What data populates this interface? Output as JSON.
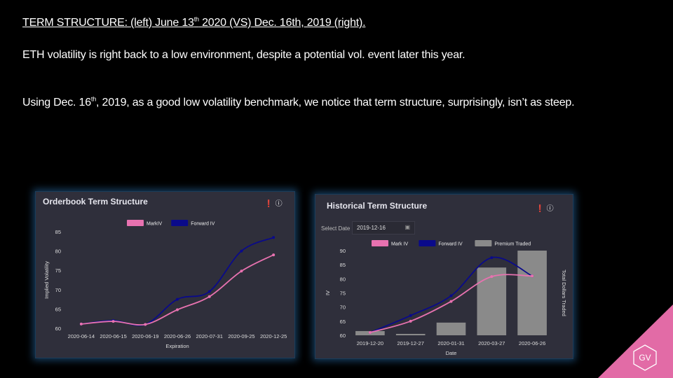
{
  "slide": {
    "title_a": "TERM STRUCTURE: (left) June 13",
    "title_sup": "th",
    "title_b": " 2020 (VS) Dec. 16th, 2019 (right).",
    "line1": "ETH volatility is right back to a low environment, despite a potential vol. event later this year.",
    "line2_a": "Using Dec. 16",
    "line2_sup": "th",
    "line2_b": ", 2019, as a good low volatility benchmark, we notice that term structure, surprisingly,  isn’t as steep.",
    "logo_text": "GV"
  },
  "colors": {
    "mark_iv": "#e872b0",
    "forward_iv": "#0a0a8a",
    "premium_traded": "#8a8a8a",
    "corner": "#e26ba6",
    "panel_bg": "#2f2f3b"
  },
  "chart_data": [
    {
      "type": "line",
      "title": "Orderbook Term Structure",
      "icons": [
        "info-icon",
        "help-icon"
      ],
      "categories": [
        "2020-06-14",
        "2020-06-15",
        "2020-06-19",
        "2020-06-26",
        "2020-07-31",
        "2020-09-25",
        "2020-12-25"
      ],
      "series": [
        {
          "name": "MarkIV",
          "values": [
            61.1,
            61.8,
            61.0,
            64.8,
            68.2,
            74.8,
            79.0
          ]
        },
        {
          "name": "Forward IV",
          "values": [
            61.1,
            62.0,
            61.0,
            67.5,
            69.5,
            80.0,
            83.5
          ]
        }
      ],
      "xlabel": "Expiration",
      "ylabel": "Implied Volatility",
      "ylim": [
        60,
        85
      ],
      "yticks": [
        60,
        65,
        70,
        75,
        80,
        85
      ],
      "legend": "top-center",
      "grid": false
    },
    {
      "type": "bar+line",
      "title": "Historical Term Structure",
      "icons": [
        "info-icon",
        "help-icon"
      ],
      "select_date_label": "Select Date",
      "select_date_value": "2019-12-16",
      "categories": [
        "2019-12-20",
        "2019-12-27",
        "2020-01-31",
        "2020-03-27",
        "2020-06-26"
      ],
      "series": [
        {
          "name": "Mark IV",
          "values": [
            61.0,
            65.0,
            72.0,
            80.8,
            81.0
          ]
        },
        {
          "name": "Forward IV",
          "values": [
            61.0,
            67.0,
            74.0,
            87.5,
            81.0
          ]
        },
        {
          "name": "Premium Traded",
          "kind": "bar",
          "values": [
            1.5,
            0.5,
            4.5,
            24.0,
            30.0
          ]
        }
      ],
      "bar_max": 30,
      "xlabel": "Date",
      "ylabel": "IV",
      "y2label": "Total Dollars Traded",
      "ylim": [
        60,
        90
      ],
      "yticks": [
        60,
        65,
        70,
        75,
        80,
        85,
        90
      ],
      "legend": "top-center",
      "grid": false
    }
  ]
}
